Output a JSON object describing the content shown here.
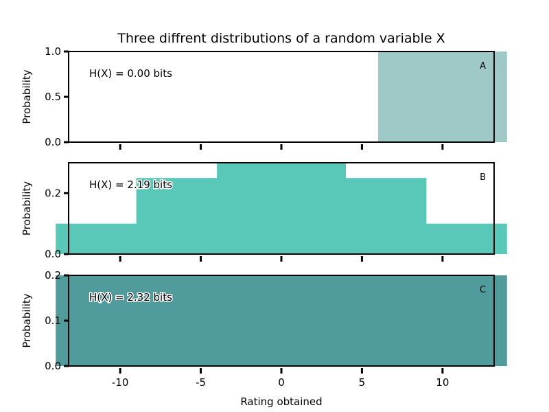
{
  "chart_data": {
    "type": "bar",
    "title": "Three diffrent distributions of a random variable X",
    "xlabel": "Rating obtained",
    "x_ticks": [
      -10,
      -5,
      0,
      5,
      10
    ],
    "x_tick_labels": [
      "-10",
      "-5",
      "0",
      "5",
      "10"
    ],
    "categories": [
      -10,
      -5,
      0,
      5,
      10
    ],
    "panels": [
      {
        "label": "A",
        "ylabel": "Probability",
        "annotation": "H(X) = 0.00 bits",
        "color": "#9ec9c7",
        "ylim": [
          0,
          1.0
        ],
        "yticks": [
          0.0,
          0.5,
          1.0
        ],
        "ytick_labels": [
          "0.0",
          "0.5",
          "1.0"
        ],
        "values": [
          0,
          0,
          0,
          0,
          1.0
        ]
      },
      {
        "label": "B",
        "ylabel": "Probability",
        "annotation": "H(X) = 2.19 bits",
        "color": "#5ac8b9",
        "ylim": [
          0,
          0.3
        ],
        "yticks": [
          0.0,
          0.2
        ],
        "ytick_labels": [
          "0.0",
          "0.2"
        ],
        "values": [
          0.1,
          0.25,
          0.3,
          0.25,
          0.1
        ]
      },
      {
        "label": "C",
        "ylabel": "Probability",
        "annotation": "H(X) = 2.32 bits",
        "color": "#509c9d",
        "ylim": [
          0,
          0.2
        ],
        "yticks": [
          0.0,
          0.1,
          0.2
        ],
        "ytick_labels": [
          "0.0",
          "0.1",
          "0.2"
        ],
        "values": [
          0.2,
          0.2,
          0.2,
          0.2,
          0.2
        ]
      }
    ]
  }
}
